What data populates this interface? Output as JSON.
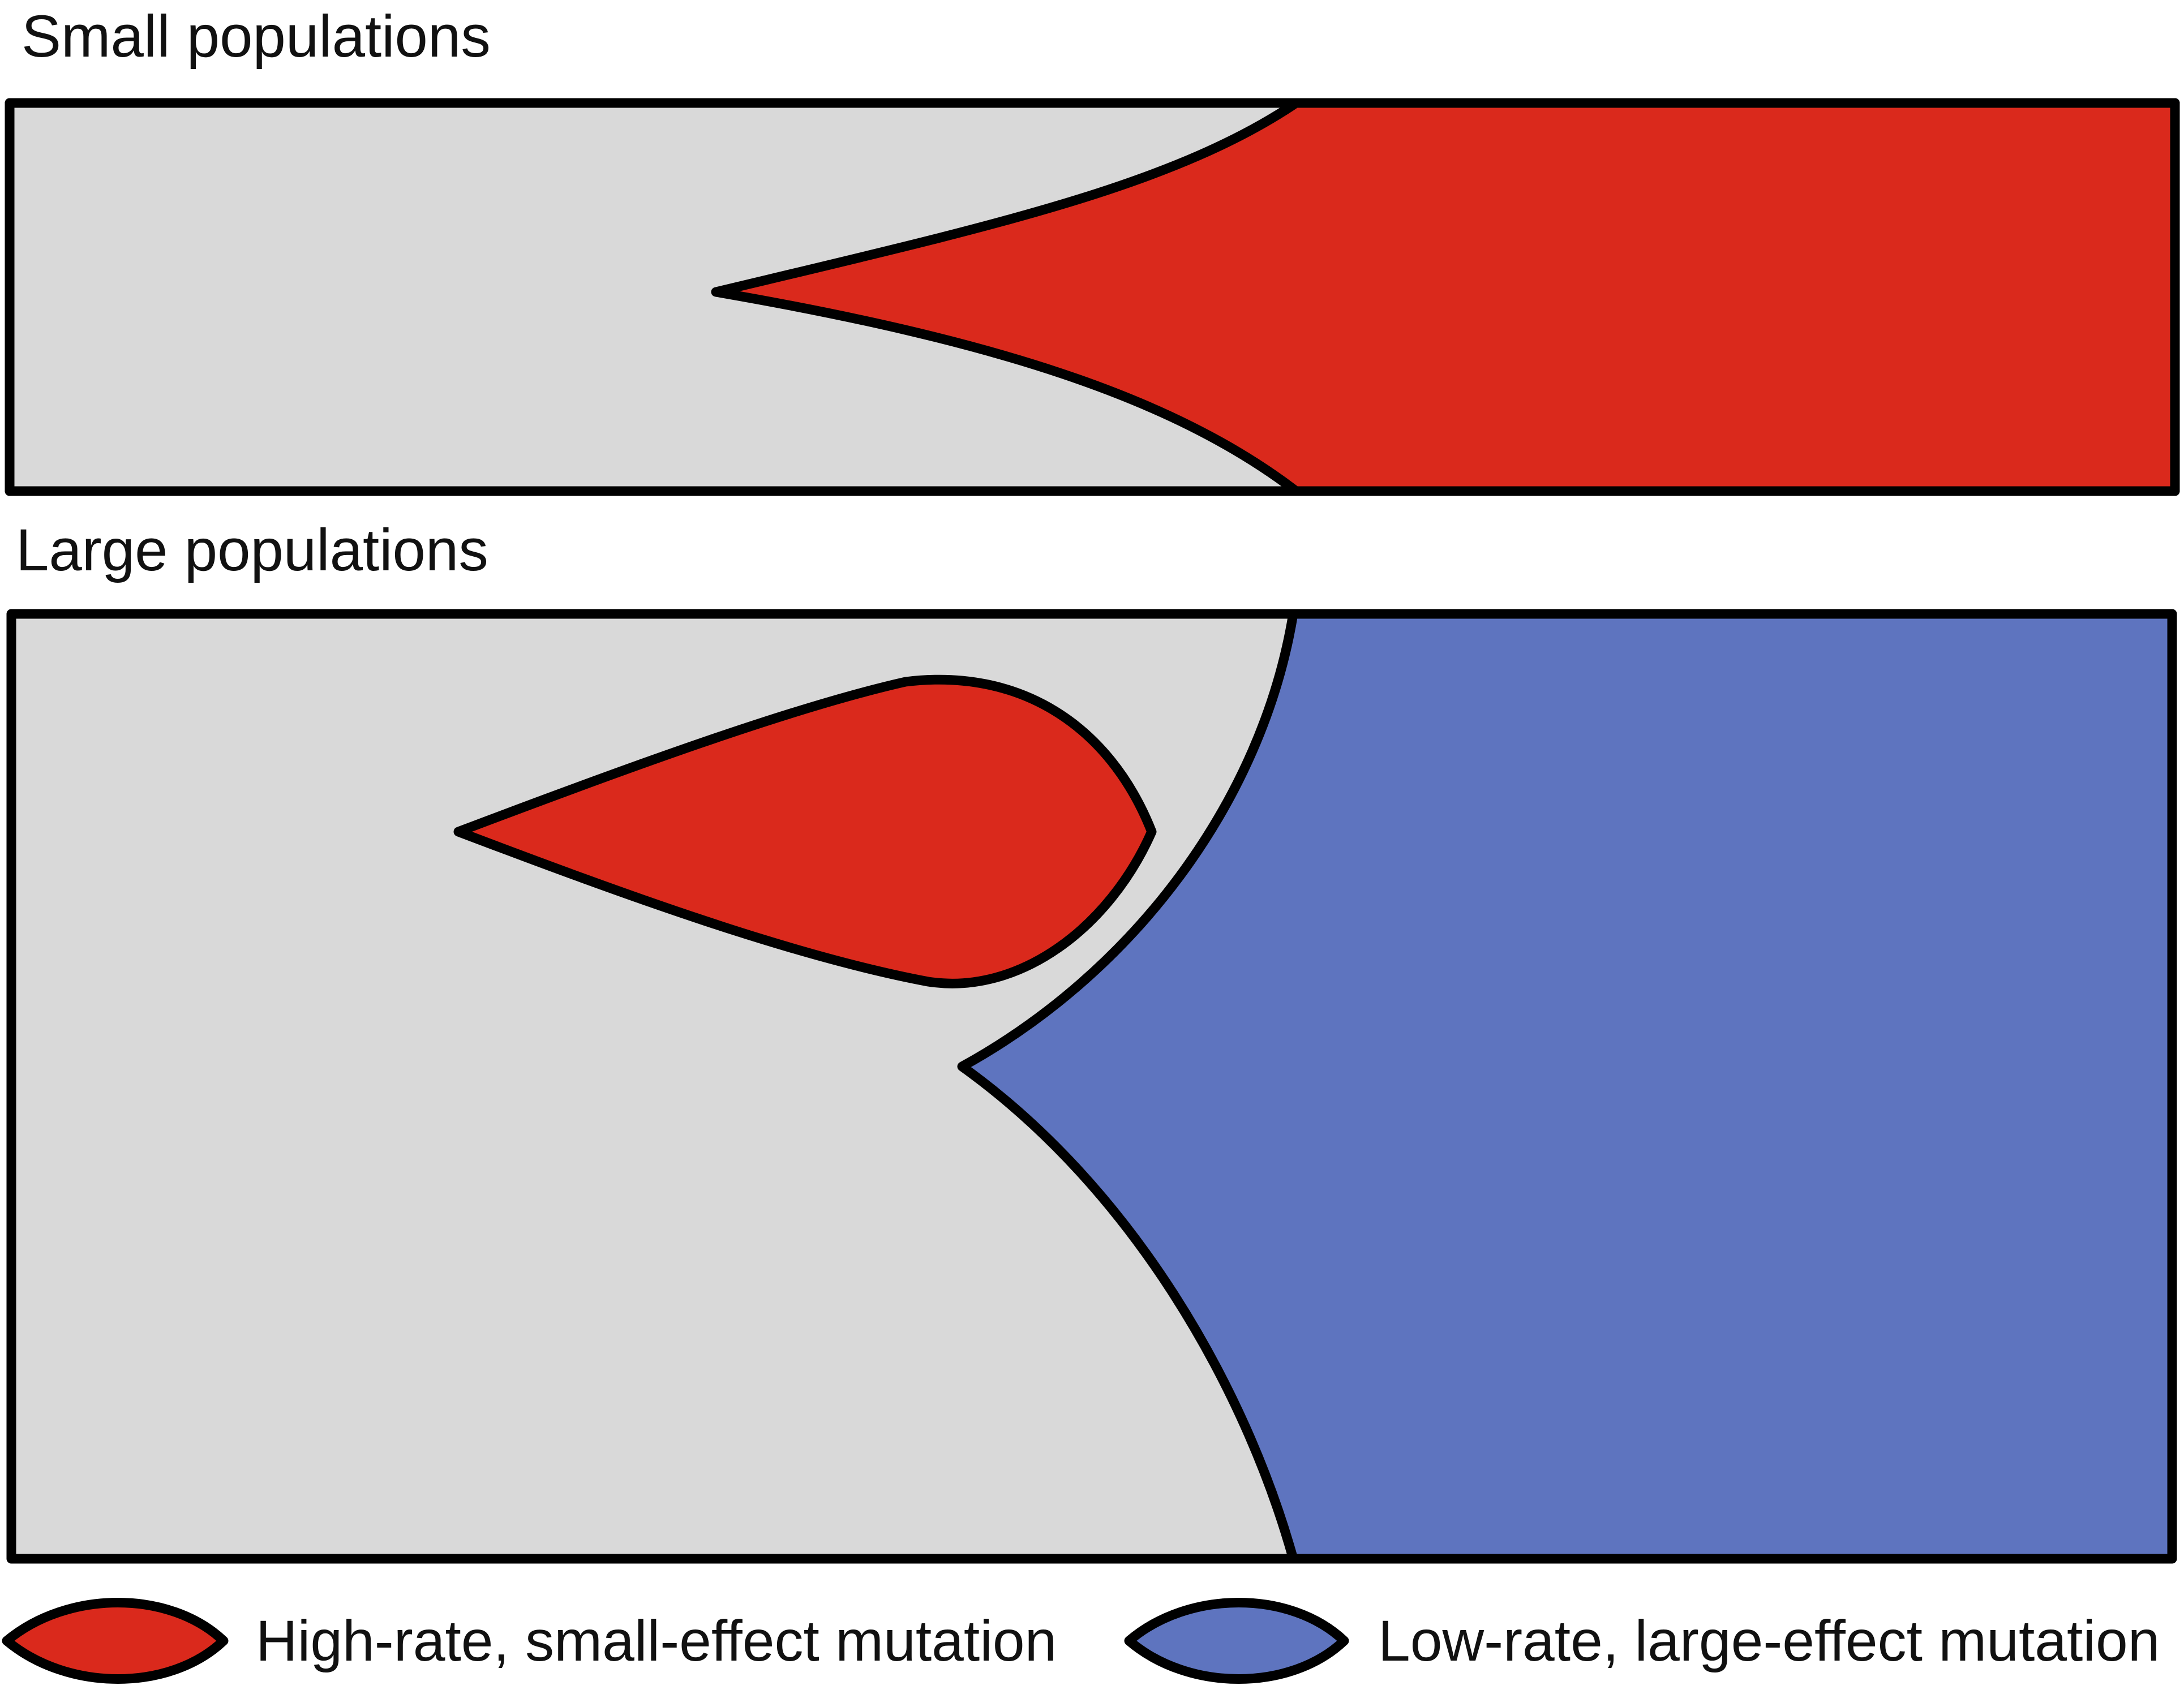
{
  "colors": {
    "background_region": "#d9d9d9",
    "high_rate_mutation": "#da291c",
    "low_rate_mutation": "#5e74bf",
    "outline": "#000000"
  },
  "panels": {
    "small": {
      "title": "Small populations"
    },
    "large": {
      "title": "Large populations"
    }
  },
  "legend": {
    "items": [
      {
        "label": "High-rate, small-effect mutation",
        "color_key": "high_rate_mutation",
        "icon": "red-lens-icon"
      },
      {
        "label": "Low-rate, large-effect mutation",
        "color_key": "low_rate_mutation",
        "icon": "blue-lens-icon"
      }
    ]
  }
}
